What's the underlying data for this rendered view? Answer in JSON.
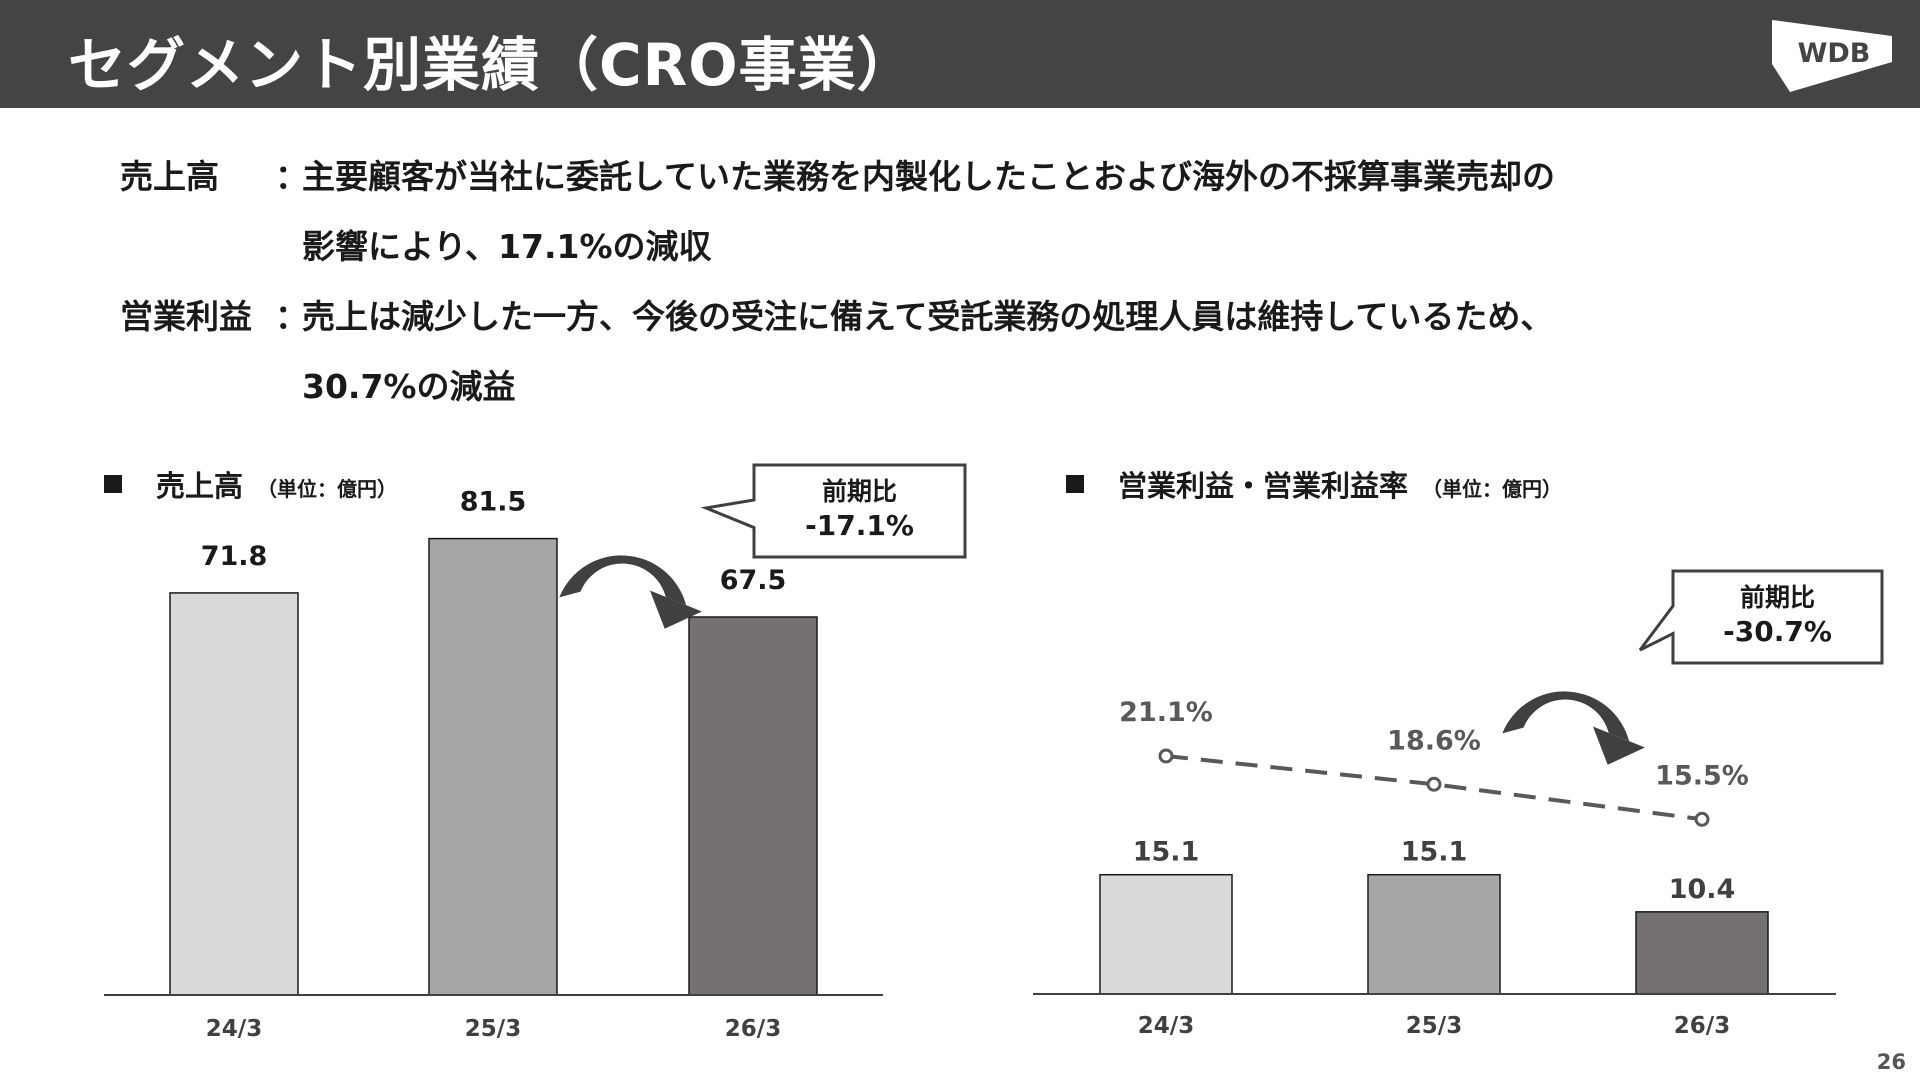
{
  "header": {
    "title": "セグメント別業績（CRO事業）",
    "logo_text": "WDB"
  },
  "description": {
    "sales": {
      "label": "売上高",
      "colon": "：",
      "line1": "主要顧客が当社に委託していた業務を内製化したことおよび海外の不採算事業売却の",
      "line2": "影響により、17.1%の減収"
    },
    "profit": {
      "label": "営業利益",
      "colon": "：",
      "line1": "売上は減少した一方、今後の受注に備えて受託業務の処理人員は維持しているため、",
      "line2": "30.7%の減益"
    }
  },
  "colors": {
    "header_bg": "#444444",
    "bar_24": "#d9d9d9",
    "bar_25": "#a6a6a6",
    "bar_26": "#757171",
    "arrow": "#404040"
  },
  "chart_data": [
    {
      "type": "bar",
      "title": "売上高",
      "unit": "（単位：億円）",
      "categories": [
        "24/3",
        "25/3",
        "26/3"
      ],
      "values": [
        71.8,
        81.5,
        67.5
      ],
      "value_labels": [
        "71.8",
        "81.5",
        "67.5"
      ],
      "ylim": [
        0,
        85
      ],
      "grid": false,
      "callout": {
        "line1": "前期比",
        "line2": "-17.1%"
      }
    },
    {
      "type": "bar",
      "title": "営業利益・営業利益率",
      "unit": "（単位：億円）",
      "categories": [
        "24/3",
        "25/3",
        "26/3"
      ],
      "values": [
        15.1,
        15.1,
        10.4
      ],
      "value_labels": [
        "15.1",
        "15.1",
        "10.4"
      ],
      "ylim": [
        0,
        40
      ],
      "grid": false,
      "margin_rate": {
        "type": "line",
        "style": "dashed",
        "values": [
          21.1,
          18.6,
          15.5
        ],
        "labels": [
          "21.1%",
          "18.6%",
          "15.5%"
        ]
      },
      "callout": {
        "line1": "前期比",
        "line2": "-30.7%"
      }
    }
  ],
  "page_number": "26"
}
